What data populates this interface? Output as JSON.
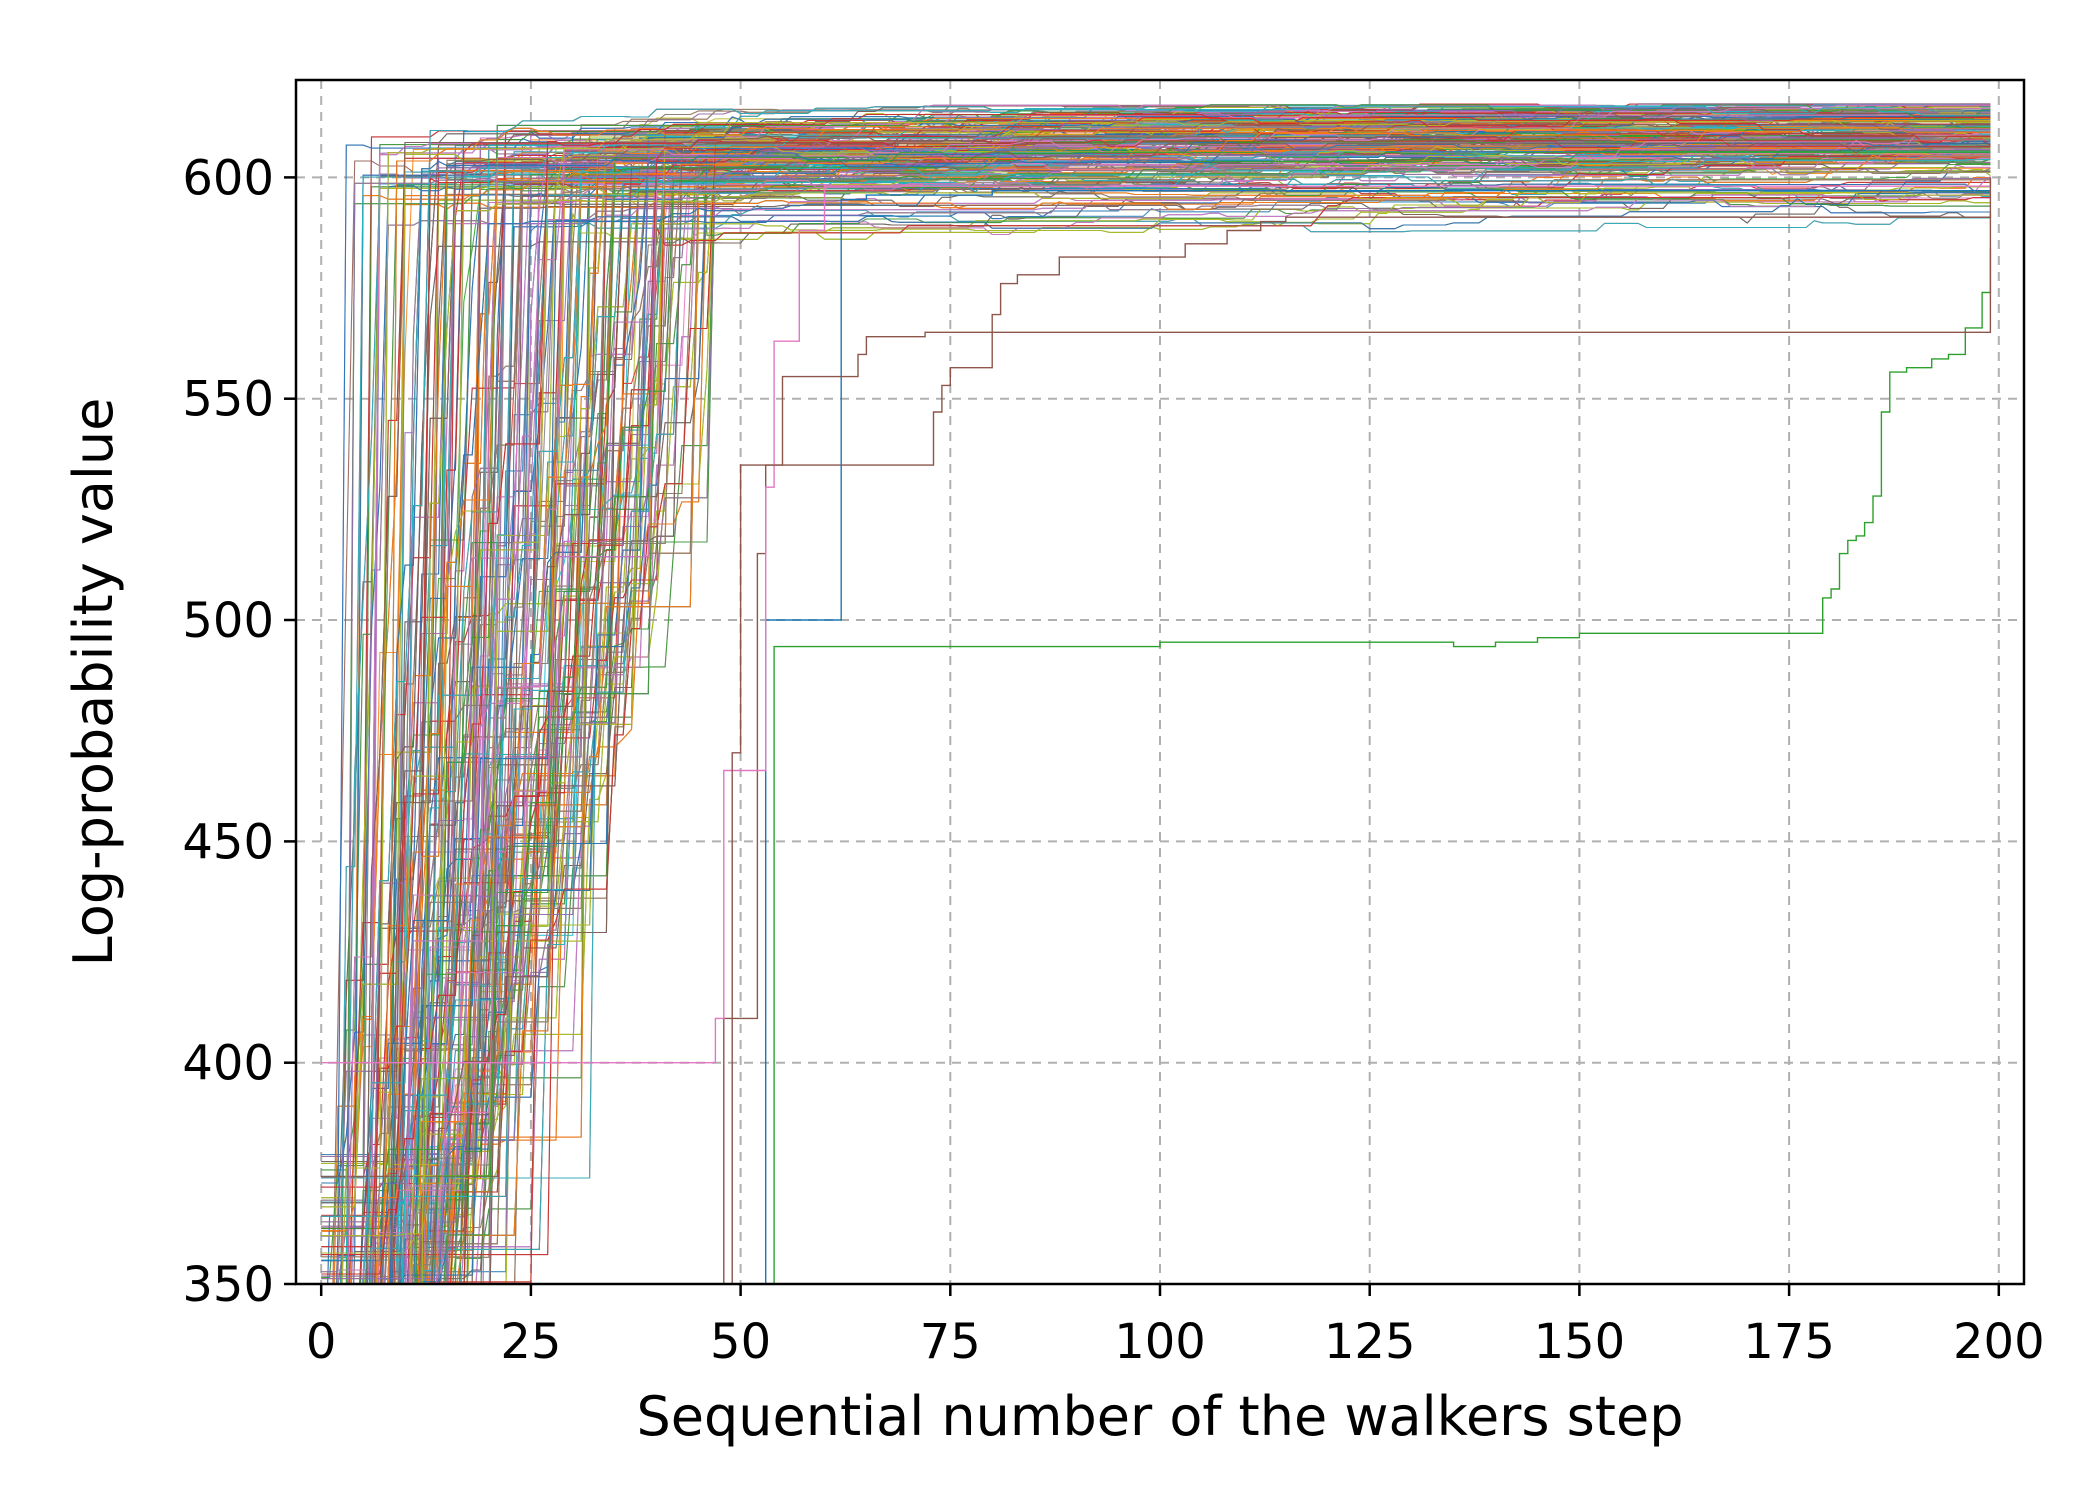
{
  "chart_data": {
    "type": "line",
    "xlabel": "Sequential number of the walkers step",
    "ylabel": "Log-probability value",
    "xlim": [
      -3,
      203
    ],
    "ylim": [
      350,
      622
    ],
    "xticks": [
      0,
      25,
      50,
      75,
      100,
      125,
      150,
      175,
      200
    ],
    "yticks": [
      350,
      400,
      450,
      500,
      550,
      600
    ],
    "grid": true,
    "legend": "none",
    "n_walkers_approx": 500,
    "n_steps": 200,
    "colors": [
      "#1f77b4",
      "#ff7f0e",
      "#2ca02c",
      "#d62728",
      "#9467bd",
      "#8c564b",
      "#e377c2",
      "#7f7f7f",
      "#bcbd22",
      "#17becf"
    ],
    "highlighted_series": [
      {
        "color": "#2ca02c",
        "x": [
          0,
          53,
          54,
          100,
          135,
          140,
          145,
          150,
          178,
          179,
          180,
          181,
          182,
          183,
          184,
          185,
          186,
          187,
          188,
          189,
          190,
          191,
          192,
          193,
          194,
          195,
          196,
          197,
          198,
          199
        ],
        "y": [
          350,
          350,
          494,
          495,
          494,
          495,
          496,
          497,
          497,
          505,
          507,
          515,
          518,
          519,
          522,
          528,
          547,
          556,
          556,
          557,
          557,
          557,
          559,
          559,
          560,
          560,
          566,
          566,
          574,
          584
        ]
      },
      {
        "color": "#8c564b",
        "x": [
          0,
          44,
          48,
          52,
          53,
          54,
          55,
          72,
          73,
          74,
          75,
          79,
          80,
          81,
          82,
          83,
          87,
          88,
          90,
          95,
          100,
          103,
          105,
          108,
          110,
          112,
          115,
          120,
          150,
          199
        ],
        "y": [
          350,
          350,
          410,
          515,
          535,
          535,
          535,
          535,
          547,
          553,
          557,
          557,
          569,
          576,
          576,
          578,
          578,
          582,
          582,
          582,
          582,
          585,
          585,
          588,
          588,
          590,
          591,
          591,
          591,
          592
        ]
      },
      {
        "color": "#1f77b4",
        "x": [
          0,
          52,
          53,
          61,
          62,
          65,
          70,
          80,
          199
        ],
        "y": [
          350,
          350,
          500,
          500,
          595,
          596,
          596,
          597,
          597
        ]
      },
      {
        "color": "#e377c2",
        "x": [
          0,
          46,
          47,
          48,
          52,
          53,
          54,
          55,
          57,
          60,
          199
        ],
        "y": [
          400,
          400,
          410,
          466,
          466,
          530,
          563,
          563,
          588,
          598,
          600
        ]
      },
      {
        "color": "#8c564b",
        "x": [
          0,
          48,
          49,
          50,
          55,
          60,
          63,
          64,
          65,
          70,
          72,
          199
        ],
        "y": [
          350,
          350,
          470,
          535,
          555,
          555,
          555,
          560,
          564,
          564,
          565,
          600
        ]
      }
    ]
  }
}
